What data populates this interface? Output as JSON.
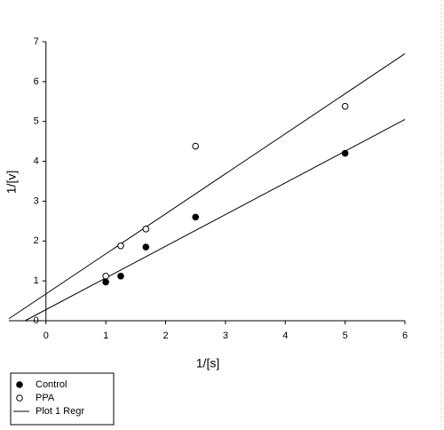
{
  "chart_data": {
    "type": "scatter",
    "x_label": "1/[s]",
    "y_label": "1/[v]",
    "xlim": [
      -0.62,
      6
    ],
    "ylim": [
      0,
      7
    ],
    "xticks": [
      0,
      1,
      2,
      3,
      4,
      5,
      6
    ],
    "yticks": [
      0,
      1,
      2,
      3,
      4,
      5,
      6,
      7
    ],
    "series": [
      {
        "name": "Control",
        "marker": "filled",
        "color": "#000000",
        "x": [
          1,
          1.25,
          1.67,
          2.5,
          5
        ],
        "values": [
          0.97,
          1.12,
          1.85,
          2.6,
          4.2
        ]
      },
      {
        "name": "PPA",
        "marker": "open",
        "color": "#000000",
        "x": [
          1,
          1.25,
          1.67,
          2.5,
          5
        ],
        "values": [
          1.12,
          1.88,
          2.3,
          4.38,
          5.38
        ]
      }
    ],
    "regression": {
      "name": "Plot 1 Regr",
      "color": "#000000",
      "lines": [
        {
          "x": [
            -0.35,
            6
          ],
          "values": [
            0,
            5.05
          ]
        },
        {
          "x": [
            -0.62,
            6
          ],
          "values": [
            0.05,
            6.7
          ]
        }
      ]
    }
  }
}
